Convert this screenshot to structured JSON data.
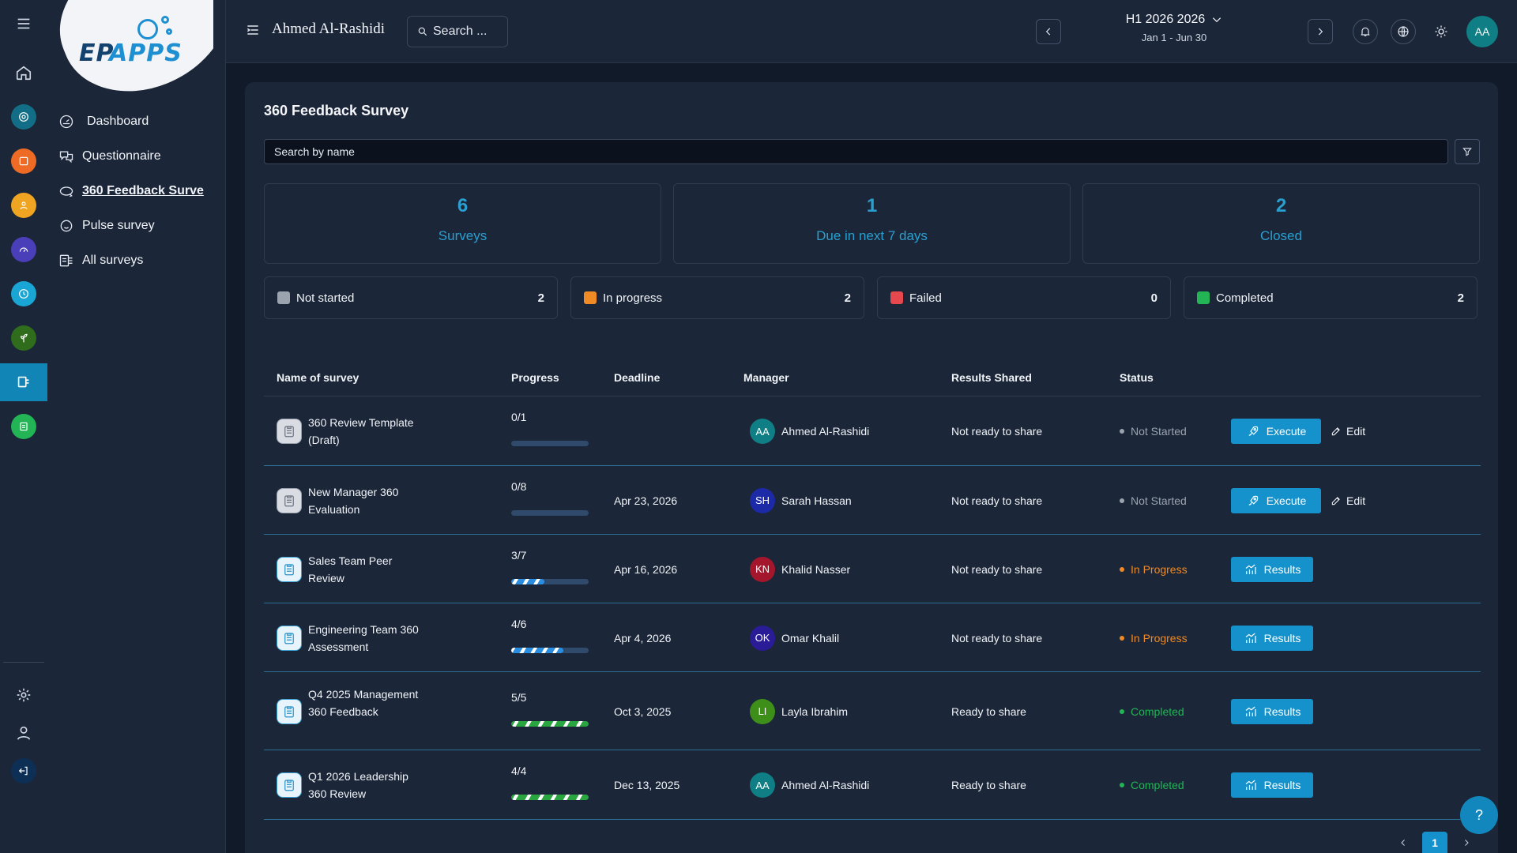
{
  "header": {
    "user_name": "Ahmed Al-Rashidi",
    "search_label": "Search ...",
    "period_title": "H1 2026 2026",
    "period_range": "Jan 1 - Jun 30",
    "avatar_initials": "AA"
  },
  "logo": {
    "text": "APPS",
    "mark": "EP"
  },
  "nav": {
    "items": [
      {
        "label": "Dashboard",
        "icon": "gauge-icon"
      },
      {
        "label": "Questionnaire",
        "icon": "chat-icon"
      },
      {
        "label": "360 Feedback Surve",
        "icon": "360-icon"
      },
      {
        "label": "Pulse survey",
        "icon": "smiley-icon"
      },
      {
        "label": "All surveys",
        "icon": "survey-list-icon"
      }
    ]
  },
  "main": {
    "title": "360 Feedback Survey",
    "search_placeholder": "Search by name",
    "stats": [
      {
        "value": "6",
        "label": "Surveys"
      },
      {
        "value": "1",
        "label": "Due in next 7 days"
      },
      {
        "value": "2",
        "label": "Closed"
      }
    ],
    "status_chips": [
      {
        "label": "Not started",
        "count": "2",
        "color": "#9aa3ae"
      },
      {
        "label": "In progress",
        "count": "2",
        "color": "#f08a24"
      },
      {
        "label": "Failed",
        "count": "0",
        "color": "#e5484d"
      },
      {
        "label": "Completed",
        "count": "2",
        "color": "#22b455"
      }
    ],
    "columns": [
      "Name of survey",
      "Progress",
      "Deadline",
      "Manager",
      "Results Shared",
      "Status"
    ],
    "rows": [
      {
        "name": "360 Review Template (Draft)",
        "progress": "0/1",
        "fraction": 0,
        "deadline": "",
        "manager": "Ahmed Al-Rashidi",
        "initials": "AA",
        "avatar_color": "#0f7f85",
        "shared": "Not ready to share",
        "status": "Not Started",
        "status_color": "#9aa3ae",
        "action": "Execute",
        "edit": "Edit"
      },
      {
        "name": "New Manager 360 Evaluation",
        "progress": "0/8",
        "fraction": 0,
        "deadline": "Apr 23, 2026",
        "manager": "Sarah Hassan",
        "initials": "SH",
        "avatar_color": "#1d2aa8",
        "shared": "Not ready to share",
        "status": "Not Started",
        "status_color": "#9aa3ae",
        "action": "Execute",
        "edit": "Edit"
      },
      {
        "name": "Sales Team Peer Review",
        "progress": "3/7",
        "fraction": 0.43,
        "deadline": "Apr 16, 2026",
        "manager": "Khalid Nasser",
        "initials": "KN",
        "avatar_color": "#a4162c",
        "shared": "Not ready to share",
        "status": "In Progress",
        "status_color": "#f08a24",
        "action": "Results",
        "edit": ""
      },
      {
        "name": "Engineering Team 360 Assessment",
        "progress": "4/6",
        "fraction": 0.67,
        "deadline": "Apr 4, 2026",
        "manager": "Omar Khalil",
        "initials": "OK",
        "avatar_color": "#2a1b96",
        "shared": "Not ready to share",
        "status": "In Progress",
        "status_color": "#f08a24",
        "action": "Results",
        "edit": ""
      },
      {
        "name": "Q4 2025 Management 360 Feedback",
        "progress": "5/5",
        "fraction": 1,
        "deadline": "Oct 3, 2025",
        "manager": "Layla Ibrahim",
        "initials": "LI",
        "avatar_color": "#3e8f1a",
        "shared": "Ready to share",
        "status": "Completed",
        "status_color": "#22b455",
        "action": "Results",
        "edit": ""
      },
      {
        "name": "Q1 2026 Leadership 360 Review",
        "progress": "4/4",
        "fraction": 1,
        "deadline": "Dec 13, 2025",
        "manager": "Ahmed Al-Rashidi",
        "initials": "AA",
        "avatar_color": "#0f7f85",
        "shared": "Ready to share",
        "status": "Completed",
        "status_color": "#22b455",
        "action": "Results",
        "edit": ""
      }
    ],
    "pagination": {
      "current": "1"
    },
    "help_label": "?"
  }
}
